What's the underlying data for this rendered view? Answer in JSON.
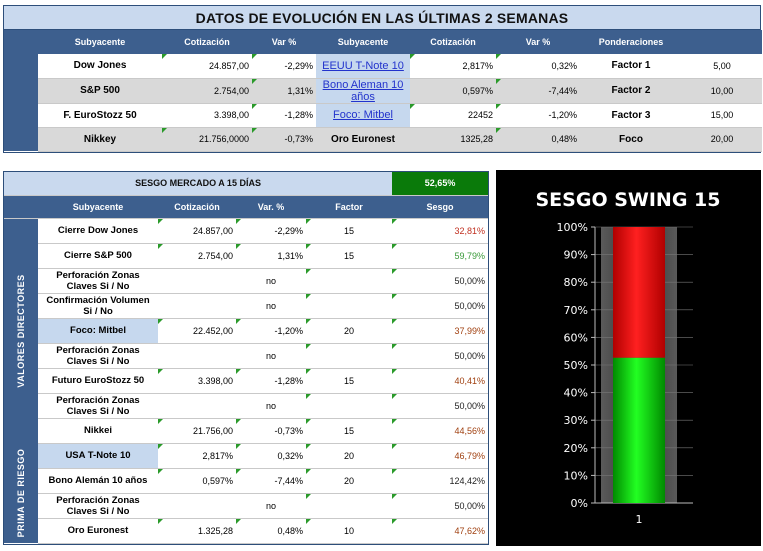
{
  "top": {
    "title": "DATOS DE EVOLUCIÓN EN LAS ÚLTIMAS 2 SEMANAS",
    "headers": [
      "Subyacente",
      "Cotización",
      "Var %",
      "Subyacente",
      "Cotización",
      "Var %",
      "Ponderaciones"
    ],
    "rows": [
      {
        "sub1": "Dow Jones",
        "cot1": "24.857,00",
        "var1": "-2,29%",
        "sub2": "EEUU T-Note 10",
        "cot2": "2,817%",
        "var2": "0,32%",
        "pond": "Factor 1",
        "val": "5,00"
      },
      {
        "sub1": "S&P 500",
        "cot1": "2.754,00",
        "var1": "1,31%",
        "sub2": "Bono Aleman 10 años",
        "cot2": "0,597%",
        "var2": "-7,44%",
        "pond": "Factor 2",
        "val": "10,00"
      },
      {
        "sub1": "F. EuroStozz 50",
        "cot1": "3.398,00",
        "var1": "-1,28%",
        "sub2": "Foco: Mitbel",
        "cot2": "22452",
        "var2": "-1,20%",
        "pond": "Factor 3",
        "val": "15,00"
      },
      {
        "sub1": "Nikkey",
        "cot1": "21.756,0000",
        "var1": "-0,73%",
        "sub2": "Oro Euronest",
        "cot2": "1325,28",
        "var2": "0,48%",
        "pond": "Foco",
        "val": "20,00"
      }
    ]
  },
  "bottom": {
    "title": "SESGO  MERCADO A 15 DÍAS",
    "title_value": "52,65%",
    "headers": [
      "Subyacente",
      "Cotización",
      "Var. %",
      "Factor",
      "Sesgo"
    ],
    "side_labels": [
      "VALORES DIRECTORES",
      "PRIMA DE RIESGO"
    ],
    "rows": [
      {
        "label": "Cierre Dow Jones",
        "cot": "24.857,00",
        "var": "-2,29%",
        "factor": "15",
        "sesgo": "32,81%",
        "sesgo_color": "red"
      },
      {
        "label": "Cierre  S&P 500",
        "cot": "2.754,00",
        "var": "1,31%",
        "factor": "15",
        "sesgo": "59,79%",
        "sesgo_color": "green"
      },
      {
        "label": "Perforación Zonas Claves Si / No",
        "cot": "",
        "var": "no",
        "factor": "",
        "sesgo": "50,00%",
        "sesgo_color": "black"
      },
      {
        "label": "Confirmación Volumen Si / No",
        "cot": "",
        "var": "no",
        "factor": "",
        "sesgo": "50,00%",
        "sesgo_color": "black"
      },
      {
        "label": "Foco: Mitbel",
        "cot": "22.452,00",
        "var": "-1,20%",
        "factor": "20",
        "sesgo": "37,99%",
        "sesgo_color": "brown"
      },
      {
        "label": "Perforación Zonas Claves Si / No",
        "cot": "",
        "var": "no",
        "factor": "",
        "sesgo": "50,00%",
        "sesgo_color": "black"
      },
      {
        "label": "Futuro EuroStozz 50",
        "cot": "3.398,00",
        "var": "-1,28%",
        "factor": "15",
        "sesgo": "40,41%",
        "sesgo_color": "brown"
      },
      {
        "label": "Perforación Zonas Claves Si / No",
        "cot": "",
        "var": "no",
        "factor": "",
        "sesgo": "50,00%",
        "sesgo_color": "black"
      },
      {
        "label": "Nikkei",
        "cot": "21.756,00",
        "var": "-0,73%",
        "factor": "15",
        "sesgo": "44,56%",
        "sesgo_color": "brown"
      },
      {
        "label": "USA T-Note 10",
        "cot": "2,817%",
        "var": "0,32%",
        "factor": "20",
        "sesgo": "46,79%",
        "sesgo_color": "brown"
      },
      {
        "label": "Bono Alemán 10 años",
        "cot": "0,597%",
        "var": "-7,44%",
        "factor": "20",
        "sesgo": "124,42%",
        "sesgo_color": "black"
      },
      {
        "label": "Perforación Zonas Claves Si / No",
        "cot": "",
        "var": "no",
        "factor": "",
        "sesgo": "50,00%",
        "sesgo_color": "black"
      },
      {
        "label": "Oro Euronest",
        "cot": "1.325,28",
        "var": "0,48%",
        "factor": "10",
        "sesgo": "47,62%",
        "sesgo_color": "brown"
      }
    ]
  },
  "colors": {
    "red": "#c03020",
    "green": "#3a9a3a",
    "brown": "#a04010",
    "black": "#222222",
    "header_blue": "#3d5f8e",
    "title_green": "#0a7a0a"
  },
  "chart_data": {
    "type": "bar",
    "stacked": true,
    "title": "SESGO SWING 15",
    "categories": [
      "1"
    ],
    "series": [
      {
        "values": [
          52.65
        ],
        "color": "#00dd00"
      },
      {
        "values": [
          47.35
        ],
        "color": "#ee0000"
      }
    ],
    "ylim": [
      0,
      100
    ],
    "yticks": [
      "0%",
      "10%",
      "20%",
      "30%",
      "40%",
      "50%",
      "60%",
      "70%",
      "80%",
      "90%",
      "100%"
    ],
    "grid": true,
    "legend": "none"
  }
}
